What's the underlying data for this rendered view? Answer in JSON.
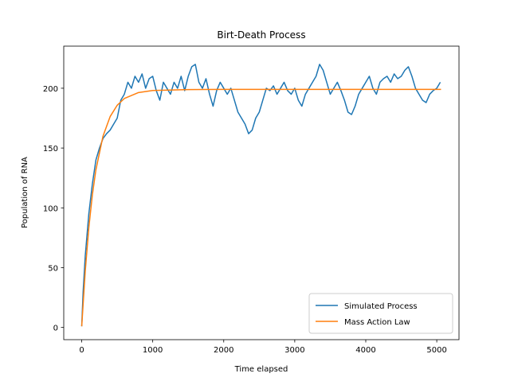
{
  "chart_data": {
    "type": "line",
    "title": "Birt-Death Process",
    "xlabel": "Time elapsed",
    "ylabel": "Population of RNA",
    "xlim": [
      -253,
      5313
    ],
    "ylim": [
      -10.2,
      235.2
    ],
    "xticks": [
      0,
      1000,
      2000,
      3000,
      4000,
      5000
    ],
    "yticks": [
      0,
      50,
      100,
      150,
      200
    ],
    "legend": "lower right",
    "series": [
      {
        "name": "Simulated Process",
        "color": "#1f77b4",
        "x": [
          0,
          20,
          50,
          100,
          150,
          200,
          250,
          300,
          350,
          400,
          450,
          500,
          550,
          600,
          650,
          700,
          750,
          800,
          850,
          900,
          950,
          1000,
          1050,
          1100,
          1150,
          1200,
          1250,
          1300,
          1350,
          1400,
          1450,
          1500,
          1550,
          1600,
          1650,
          1700,
          1750,
          1800,
          1850,
          1900,
          1950,
          2000,
          2050,
          2100,
          2150,
          2200,
          2250,
          2300,
          2350,
          2400,
          2450,
          2500,
          2550,
          2600,
          2650,
          2700,
          2750,
          2800,
          2850,
          2900,
          2950,
          3000,
          3050,
          3100,
          3150,
          3200,
          3250,
          3300,
          3350,
          3400,
          3450,
          3500,
          3550,
          3600,
          3650,
          3700,
          3750,
          3800,
          3850,
          3900,
          3950,
          4000,
          4050,
          4100,
          4150,
          4200,
          4250,
          4300,
          4350,
          4400,
          4450,
          4500,
          4550,
          4600,
          4650,
          4700,
          4750,
          4800,
          4850,
          4900,
          4950,
          5000,
          5050
        ],
        "values": [
          1,
          30,
          60,
          95,
          120,
          140,
          150,
          158,
          162,
          165,
          170,
          175,
          190,
          195,
          205,
          200,
          210,
          205,
          212,
          200,
          208,
          210,
          198,
          190,
          205,
          200,
          195,
          205,
          200,
          210,
          198,
          210,
          218,
          220,
          205,
          200,
          208,
          195,
          185,
          198,
          205,
          200,
          195,
          200,
          190,
          180,
          175,
          170,
          162,
          165,
          175,
          180,
          190,
          200,
          198,
          202,
          195,
          200,
          205,
          198,
          195,
          200,
          190,
          185,
          195,
          200,
          205,
          210,
          220,
          215,
          205,
          195,
          200,
          205,
          198,
          190,
          180,
          178,
          185,
          195,
          200,
          205,
          210,
          200,
          195,
          205,
          208,
          210,
          205,
          212,
          208,
          210,
          215,
          218,
          210,
          200,
          195,
          190,
          188,
          195,
          198,
          200,
          205
        ]
      },
      {
        "name": "Mass Action Law",
        "color": "#ff7f0e",
        "x": [
          0,
          50,
          100,
          150,
          200,
          300,
          400,
          500,
          600,
          800,
          1000,
          1500,
          2000,
          3000,
          4000,
          5060
        ],
        "values": [
          1,
          47.4,
          83.4,
          110.9,
          131.9,
          160,
          176.3,
          185.8,
          191.4,
          196.4,
          198.1,
          198.9,
          199,
          199,
          199,
          199
        ]
      }
    ]
  }
}
